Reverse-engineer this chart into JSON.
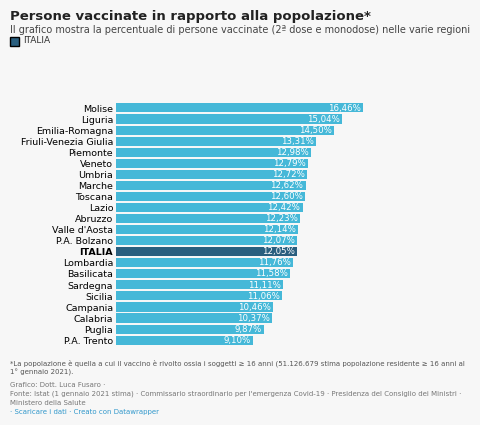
{
  "title": "Persone vaccinate in rapporto alla popolazione*",
  "subtitle": "Il grafico mostra la percentuale di persone vaccinate (2ª dose e monodose) nelle varie regioni",
  "legend_label": "ITALIA",
  "categories": [
    "Molise",
    "Liguria",
    "Emilia-Romagna",
    "Friuli-Venezia Giulia",
    "Piemonte",
    "Veneto",
    "Umbria",
    "Marche",
    "Toscana",
    "Lazio",
    "Abruzzo",
    "Valle d'Aosta",
    "P.A. Bolzano",
    "ITALIA",
    "Lombardia",
    "Basilicata",
    "Sardegna",
    "Sicilia",
    "Campania",
    "Calabria",
    "Puglia",
    "P.A. Trento"
  ],
  "values": [
    16.46,
    15.04,
    14.5,
    13.31,
    12.98,
    12.79,
    12.72,
    12.62,
    12.6,
    12.42,
    12.23,
    12.14,
    12.07,
    12.05,
    11.76,
    11.58,
    11.11,
    11.06,
    10.46,
    10.37,
    9.87,
    9.1
  ],
  "bar_color_normal": "#45b8d8",
  "bar_color_italia": "#2a5f7f",
  "label_color": "#ffffff",
  "background_color": "#f7f7f7",
  "title_fontsize": 9.5,
  "subtitle_fontsize": 7.0,
  "tick_fontsize": 6.8,
  "label_fontsize": 6.2,
  "footnote_line1": "*La popolazione è quella a cui il vaccino è rivolto ossia i soggetti ≥ 16 anni (51.126.679 stima popolazione residente ≥ 16 anni al",
  "footnote_line2": "1° gennaio 2021).",
  "credit_line1": "Grafico: Dott. Luca Fusaro ·",
  "credit_line2": "Fonte: Istat (1 gennaio 2021 stima) · Commissario straordinario per l'emergenza Covid-19 · Presidenza del Consiglio dei Ministri ·",
  "credit_line3": "Ministero della Salute",
  "link_text": "· Scaricare i dati · Creato con Datawrapper",
  "link_color": "#3399cc",
  "credit_color": "#777777",
  "footnote_color": "#555555"
}
